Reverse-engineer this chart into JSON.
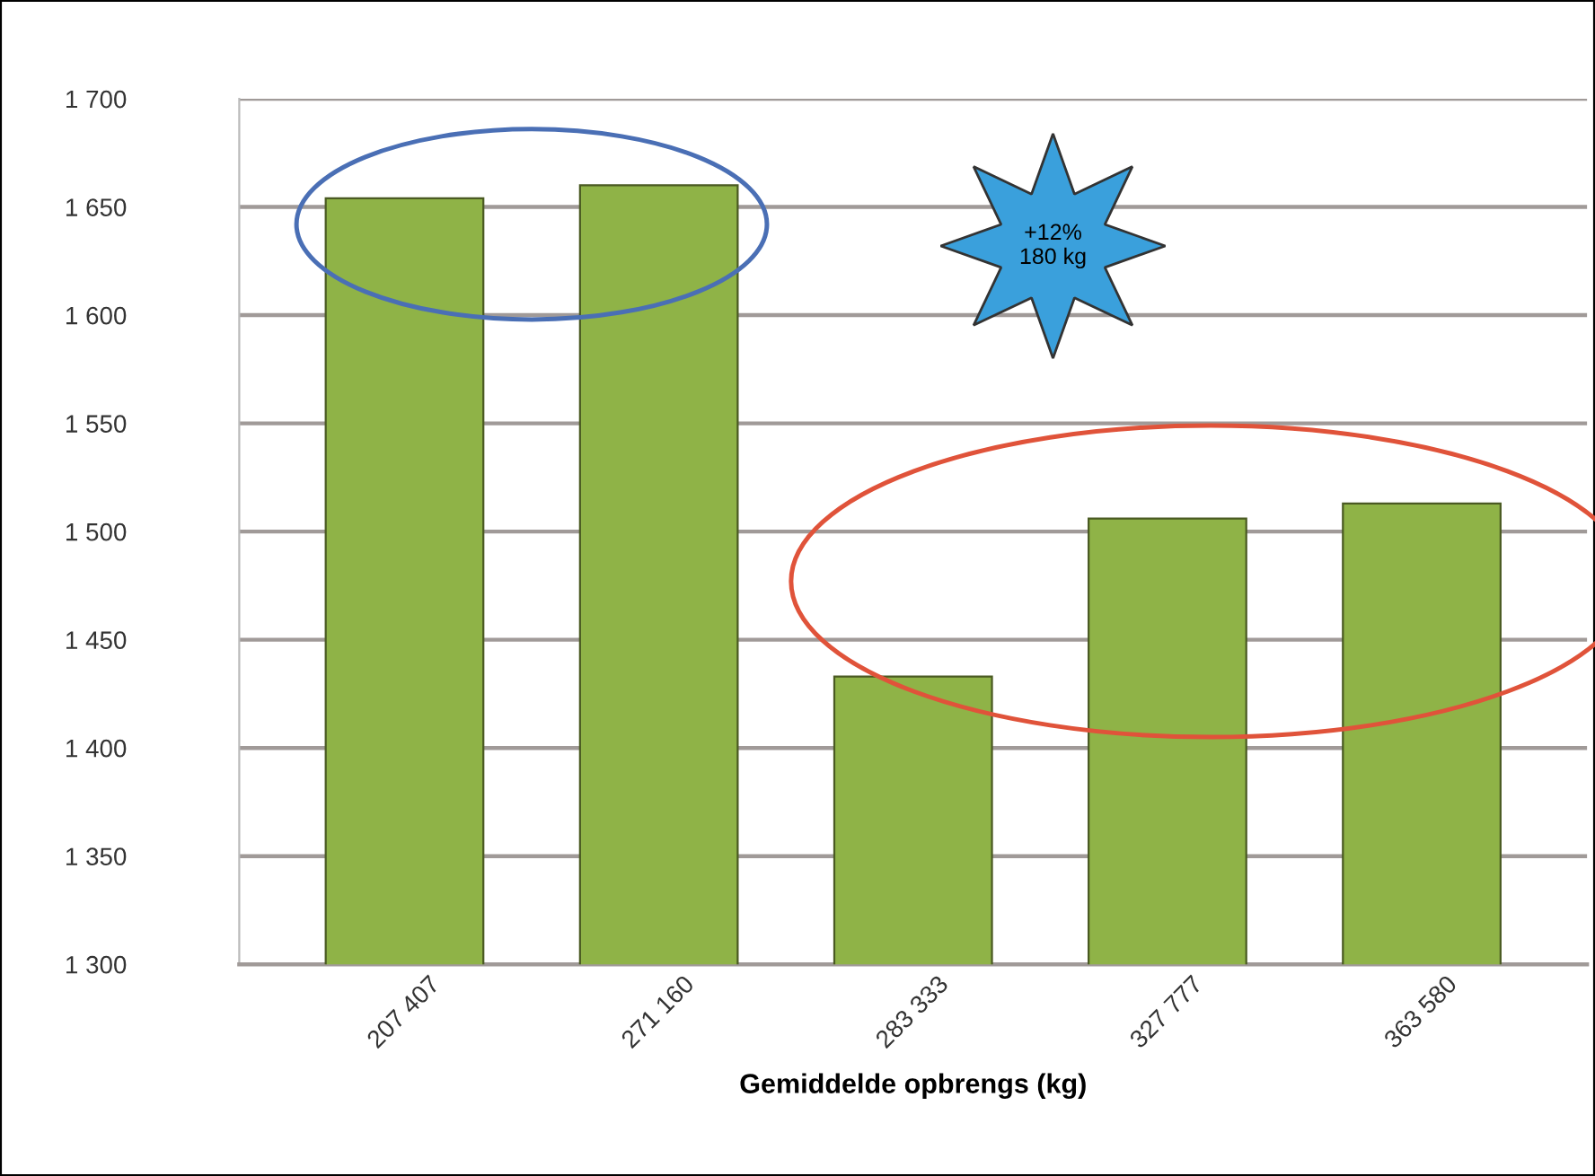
{
  "chart_data": {
    "type": "bar",
    "xlabel": "Gemiddelde opbrengs (kg)",
    "categories": [
      "207 407",
      "271 160",
      "283 333",
      "327 777",
      "363 580"
    ],
    "values": [
      1654,
      1660,
      1433,
      1506,
      1513
    ],
    "color": "#8fb347",
    "ylim": [
      1300,
      1700
    ],
    "yticks": [
      {
        "value": 1300,
        "label": "1 300"
      },
      {
        "value": 1350,
        "label": "1 350"
      },
      {
        "value": 1400,
        "label": "1 400"
      },
      {
        "value": 1450,
        "label": "1 450"
      },
      {
        "value": 1500,
        "label": "1 500"
      },
      {
        "value": 1550,
        "label": "1 550"
      },
      {
        "value": 1600,
        "label": "1 600"
      },
      {
        "value": 1650,
        "label": "1 650"
      },
      {
        "value": 1700,
        "label": "1 700"
      }
    ],
    "grid": "y",
    "annotations": [
      "+12%\n180 kg"
    ]
  }
}
